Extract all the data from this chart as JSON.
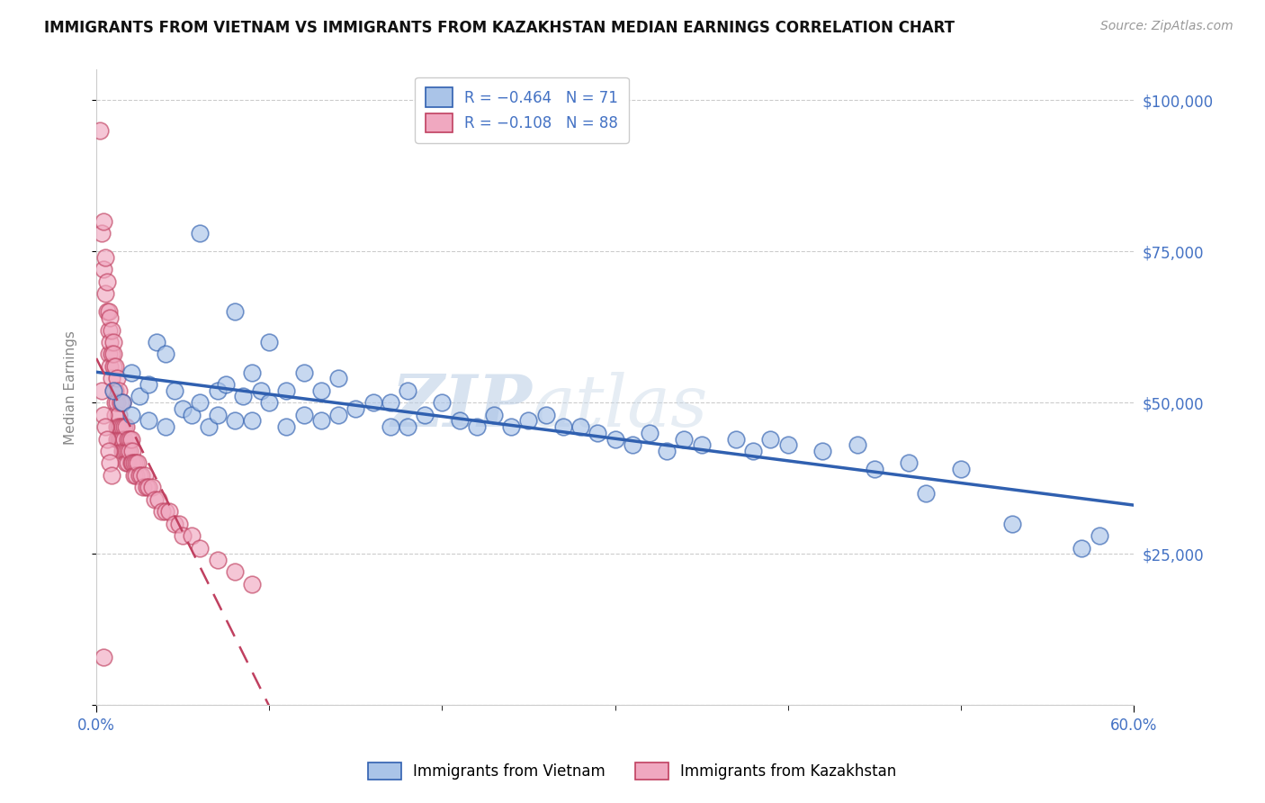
{
  "title": "IMMIGRANTS FROM VIETNAM VS IMMIGRANTS FROM KAZAKHSTAN MEDIAN EARNINGS CORRELATION CHART",
  "source": "Source: ZipAtlas.com",
  "ylabel": "Median Earnings",
  "y_ticks": [
    0,
    25000,
    50000,
    75000,
    100000
  ],
  "y_tick_labels": [
    "",
    "$25,000",
    "$50,000",
    "$75,000",
    "$100,000"
  ],
  "x_range": [
    0.0,
    0.6
  ],
  "y_range": [
    0,
    105000
  ],
  "color_vietnam": "#aac4e8",
  "color_kazakhstan": "#f0a8c0",
  "color_line_vietnam": "#3060b0",
  "color_line_kazakhstan": "#c04060",
  "background_color": "#ffffff",
  "watermark_zip": "ZIP",
  "watermark_atlas": "atlas",
  "vietnam_x": [
    0.01,
    0.015,
    0.02,
    0.02,
    0.025,
    0.03,
    0.03,
    0.035,
    0.04,
    0.04,
    0.045,
    0.05,
    0.055,
    0.06,
    0.06,
    0.065,
    0.07,
    0.07,
    0.075,
    0.08,
    0.08,
    0.085,
    0.09,
    0.09,
    0.095,
    0.1,
    0.1,
    0.11,
    0.11,
    0.12,
    0.12,
    0.13,
    0.13,
    0.14,
    0.14,
    0.15,
    0.16,
    0.17,
    0.17,
    0.18,
    0.18,
    0.19,
    0.2,
    0.21,
    0.22,
    0.23,
    0.24,
    0.25,
    0.26,
    0.27,
    0.28,
    0.29,
    0.3,
    0.31,
    0.32,
    0.33,
    0.34,
    0.35,
    0.37,
    0.38,
    0.39,
    0.4,
    0.42,
    0.44,
    0.45,
    0.47,
    0.48,
    0.5,
    0.53,
    0.57,
    0.58
  ],
  "vietnam_y": [
    52000,
    50000,
    55000,
    48000,
    51000,
    53000,
    47000,
    60000,
    58000,
    46000,
    52000,
    49000,
    48000,
    78000,
    50000,
    46000,
    52000,
    48000,
    53000,
    65000,
    47000,
    51000,
    55000,
    47000,
    52000,
    50000,
    60000,
    52000,
    46000,
    55000,
    48000,
    52000,
    47000,
    54000,
    48000,
    49000,
    50000,
    50000,
    46000,
    52000,
    46000,
    48000,
    50000,
    47000,
    46000,
    48000,
    46000,
    47000,
    48000,
    46000,
    46000,
    45000,
    44000,
    43000,
    45000,
    42000,
    44000,
    43000,
    44000,
    42000,
    44000,
    43000,
    42000,
    43000,
    39000,
    40000,
    35000,
    39000,
    30000,
    26000,
    28000
  ],
  "kazakhstan_x": [
    0.002,
    0.003,
    0.004,
    0.004,
    0.005,
    0.005,
    0.006,
    0.006,
    0.007,
    0.007,
    0.007,
    0.008,
    0.008,
    0.008,
    0.009,
    0.009,
    0.009,
    0.01,
    0.01,
    0.01,
    0.01,
    0.011,
    0.011,
    0.011,
    0.011,
    0.012,
    0.012,
    0.012,
    0.012,
    0.013,
    0.013,
    0.013,
    0.013,
    0.014,
    0.014,
    0.014,
    0.015,
    0.015,
    0.015,
    0.015,
    0.016,
    0.016,
    0.016,
    0.017,
    0.017,
    0.017,
    0.018,
    0.018,
    0.018,
    0.019,
    0.019,
    0.02,
    0.02,
    0.021,
    0.021,
    0.022,
    0.022,
    0.023,
    0.023,
    0.024,
    0.025,
    0.026,
    0.027,
    0.028,
    0.029,
    0.03,
    0.032,
    0.034,
    0.036,
    0.038,
    0.04,
    0.042,
    0.045,
    0.048,
    0.05,
    0.055,
    0.06,
    0.07,
    0.08,
    0.09,
    0.003,
    0.004,
    0.005,
    0.006,
    0.007,
    0.008,
    0.009,
    0.004
  ],
  "kazakhstan_y": [
    95000,
    78000,
    80000,
    72000,
    74000,
    68000,
    70000,
    65000,
    65000,
    62000,
    58000,
    64000,
    60000,
    56000,
    62000,
    58000,
    54000,
    60000,
    56000,
    52000,
    58000,
    56000,
    52000,
    50000,
    48000,
    54000,
    50000,
    46000,
    44000,
    52000,
    48000,
    46000,
    44000,
    50000,
    46000,
    44000,
    50000,
    46000,
    44000,
    42000,
    46000,
    44000,
    42000,
    46000,
    42000,
    40000,
    44000,
    42000,
    40000,
    44000,
    42000,
    44000,
    40000,
    42000,
    40000,
    40000,
    38000,
    40000,
    38000,
    40000,
    38000,
    38000,
    36000,
    38000,
    36000,
    36000,
    36000,
    34000,
    34000,
    32000,
    32000,
    32000,
    30000,
    30000,
    28000,
    28000,
    26000,
    24000,
    22000,
    20000,
    52000,
    48000,
    46000,
    44000,
    42000,
    40000,
    38000,
    8000
  ]
}
